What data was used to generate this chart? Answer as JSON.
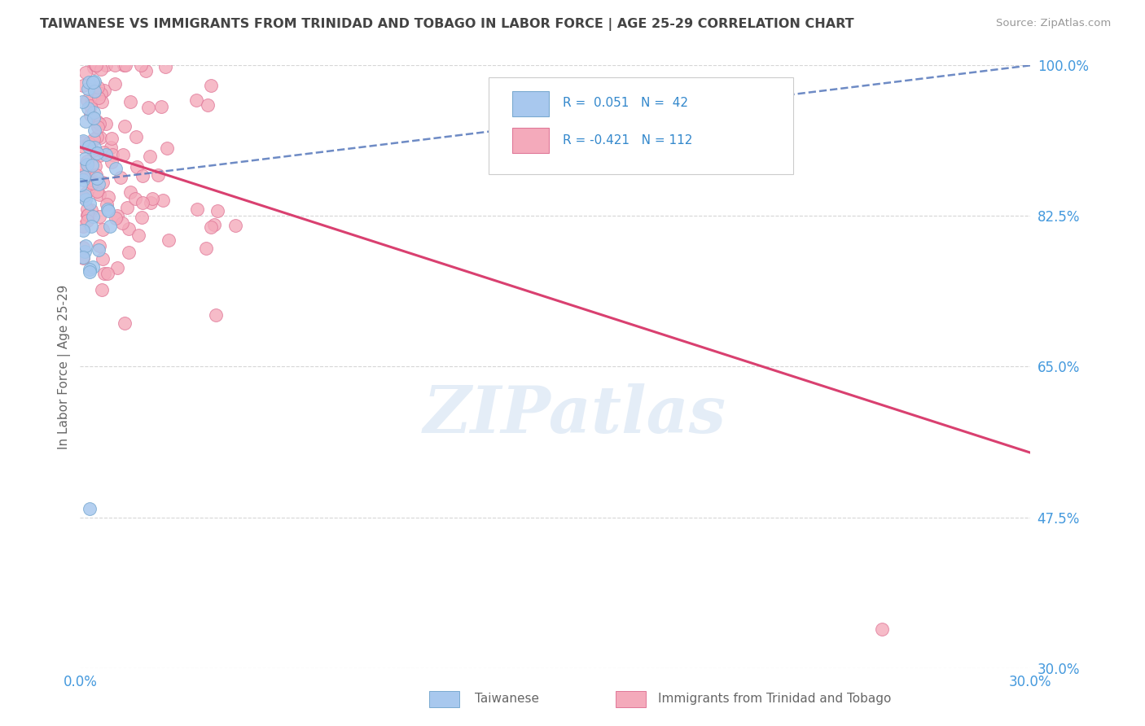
{
  "title": "TAIWANESE VS IMMIGRANTS FROM TRINIDAD AND TOBAGO IN LABOR FORCE | AGE 25-29 CORRELATION CHART",
  "source": "Source: ZipAtlas.com",
  "ylabel": "In Labor Force | Age 25-29",
  "xlim": [
    0.0,
    0.3
  ],
  "ylim": [
    0.3,
    1.0
  ],
  "ytick_labels": [
    "100.0%",
    "82.5%",
    "65.0%",
    "47.5%",
    "30.0%"
  ],
  "ytick_values": [
    1.0,
    0.825,
    0.65,
    0.475,
    0.3
  ],
  "xtick_labels": [
    "0.0%",
    "30.0%"
  ],
  "xtick_values": [
    0.0,
    0.3
  ],
  "r_taiwanese": 0.051,
  "n_taiwanese": 42,
  "r_tt": -0.421,
  "n_tt": 112,
  "taiwanese_color": "#A8C8EE",
  "tt_color": "#F4AABB",
  "taiwanese_edge": "#7AAAD0",
  "tt_edge": "#E07898",
  "trend_taiwanese_color": "#5577BB",
  "trend_tt_color": "#D94070",
  "background_color": "#FFFFFF",
  "watermark": "ZIPatlas",
  "title_color": "#444444",
  "axis_label_color": "#666666",
  "tick_label_color": "#4499DD",
  "legend_text_color": "#3388CC",
  "source_color": "#999999",
  "grid_color": "#BBBBBB",
  "tw_trend_x0": 0.0,
  "tw_trend_y0": 0.865,
  "tw_trend_x1": 0.3,
  "tw_trend_y1": 1.0,
  "tt_trend_x0": 0.0,
  "tt_trend_y0": 0.905,
  "tt_trend_x1": 0.3,
  "tt_trend_y1": 0.55
}
